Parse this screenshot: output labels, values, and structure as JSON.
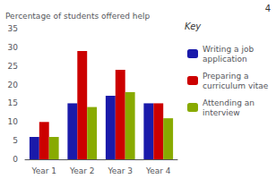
{
  "chart_data": {
    "type": "bar",
    "ylabel": "Percentage of students offered help",
    "categories": [
      "Year 1",
      "Year 2",
      "Year 3",
      "Year 4"
    ],
    "series": [
      {
        "name": "Writing a job application",
        "color": "#1a1aaa",
        "values": [
          6,
          15,
          17,
          15
        ]
      },
      {
        "name": "Preparing a curriculum vitae",
        "color": "#cc0000",
        "values": [
          10,
          29,
          24,
          15
        ]
      },
      {
        "name": "Attending an interview",
        "color": "#88aa00",
        "values": [
          6,
          14,
          18,
          11
        ]
      }
    ],
    "ylim": [
      0,
      35
    ],
    "yticks": [
      0,
      5,
      10,
      15,
      20,
      25,
      30,
      35
    ],
    "grid": false,
    "legend": "right",
    "annotations": [
      "Key",
      "4"
    ]
  }
}
